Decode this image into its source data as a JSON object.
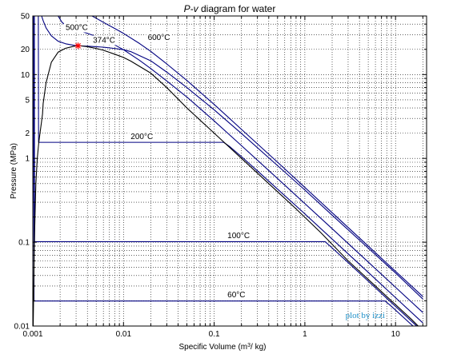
{
  "chart_data": {
    "type": "line",
    "title": {
      "italic": "P-v",
      "rest": " diagram for water"
    },
    "xlabel": {
      "before": "Specific Volume (m",
      "sup": "3",
      "after": "/ kg)"
    },
    "ylabel": "Pressure (MPa)",
    "x_scale": "log",
    "y_scale": "log",
    "xlim": [
      0.001,
      22
    ],
    "ylim": [
      0.01,
      50
    ],
    "grid": true,
    "x_ticks": [
      {
        "value": 0.001,
        "label": "0.001"
      },
      {
        "value": 0.01,
        "label": "0.01"
      },
      {
        "value": 0.1,
        "label": "0.1"
      },
      {
        "value": 1,
        "label": "1"
      },
      {
        "value": 10,
        "label": "10"
      }
    ],
    "y_ticks": [
      {
        "value": 50,
        "label": "50"
      },
      {
        "value": 20,
        "label": "20"
      },
      {
        "value": 10,
        "label": "10"
      },
      {
        "value": 5,
        "label": "5"
      },
      {
        "value": 2,
        "label": "2"
      },
      {
        "value": 1,
        "label": "1"
      },
      {
        "value": 0.1,
        "label": "0.1"
      },
      {
        "value": 0.01,
        "label": "0.01"
      }
    ],
    "saturation_dome": {
      "color": "#000000",
      "x": [
        0.00101,
        0.00104,
        0.00108,
        0.00112,
        0.00116,
        0.0012,
        0.00124,
        0.00128,
        0.0013,
        0.0014,
        0.0016,
        0.0019,
        0.0023,
        0.0028,
        0.003155,
        0.0035,
        0.004,
        0.005,
        0.006,
        0.008,
        0.01,
        0.012,
        0.02,
        0.03,
        0.05,
        0.1,
        0.2,
        0.4,
        0.8,
        1.5,
        3,
        6,
        10,
        15,
        20
      ],
      "y": [
        0.01,
        0.1,
        0.5,
        1,
        1.5,
        2,
        2.6,
        3.4,
        4.5,
        8,
        14,
        18.5,
        20.6,
        21.7,
        22.06,
        21.9,
        21.5,
        20.5,
        19.5,
        17.5,
        16.0,
        14.5,
        10.4,
        7.0,
        4.0,
        2.0,
        1.0,
        0.5,
        0.25,
        0.13,
        0.06,
        0.03,
        0.018,
        0.012,
        0.0088
      ]
    },
    "critical_point": {
      "x": 0.003155,
      "y": 22.06,
      "color": "#ff0000"
    },
    "isotherms": [
      {
        "label": "60°C",
        "color": "#000080",
        "x": [
          0.001017,
          0.00102,
          0.00103,
          7.67,
          9,
          11,
          14,
          17,
          20
        ],
        "y": [
          50,
          10,
          0.0199,
          0.0199,
          0.0172,
          0.0141,
          0.0111,
          0.0092,
          0.0079
        ]
      },
      {
        "label": "100°C",
        "color": "#000080",
        "x": [
          0.00104,
          0.001042,
          0.001044,
          1.673,
          2,
          3,
          5,
          8,
          12,
          16,
          20
        ],
        "y": [
          50,
          5,
          0.1014,
          0.1014,
          0.0855,
          0.0572,
          0.0343,
          0.0214,
          0.0143,
          0.0107,
          0.0086
        ]
      },
      {
        "label": "200°C",
        "color": "#000080",
        "x": [
          0.00115,
          0.001155,
          0.001157,
          0.1274,
          0.15,
          0.2,
          0.3,
          0.5,
          1,
          2,
          5,
          10,
          20
        ],
        "y": [
          50,
          5,
          1.554,
          1.554,
          1.37,
          1.05,
          0.71,
          0.43,
          0.218,
          0.109,
          0.0437,
          0.0218,
          0.0109
        ]
      },
      {
        "label": "374°C",
        "color": "#000080",
        "x": [
          0.00125,
          0.0013,
          0.0014,
          0.0016,
          0.0019,
          0.0023,
          0.0028,
          0.003155,
          0.0035,
          0.004,
          0.005,
          0.006,
          0.008,
          0.01,
          0.012,
          0.02,
          0.03,
          0.05,
          0.1,
          0.2,
          0.5,
          1,
          2,
          5,
          10,
          20
        ],
        "y": [
          50,
          44,
          36,
          29,
          25,
          23.3,
          22.4,
          22.06,
          21.95,
          21.8,
          21.5,
          21.2,
          20.5,
          19.8,
          18.8,
          14.6,
          10.7,
          7.0,
          3.8,
          1.98,
          0.82,
          0.42,
          0.21,
          0.085,
          0.043,
          0.021
        ]
      },
      {
        "label": "500°C",
        "color": "#000080",
        "x": [
          0.0019,
          0.0021,
          0.0025,
          0.003,
          0.0035,
          0.004,
          0.005,
          0.006,
          0.008,
          0.01,
          0.015,
          0.02,
          0.03,
          0.05,
          0.1,
          0.2,
          0.5,
          1,
          2,
          5,
          10,
          20
        ],
        "y": [
          50,
          42,
          36,
          34,
          32.5,
          31,
          28.5,
          26.2,
          22.6,
          19.8,
          14.8,
          11.8,
          8.4,
          5.4,
          2.8,
          1.42,
          0.575,
          0.289,
          0.145,
          0.058,
          0.029,
          0.0145
        ]
      },
      {
        "label": "600°C",
        "color": "#000080",
        "x": [
          0.0045,
          0.005,
          0.006,
          0.008,
          0.01,
          0.015,
          0.02,
          0.03,
          0.05,
          0.1,
          0.2,
          0.5,
          1,
          2,
          5,
          10,
          20
        ],
        "y": [
          50,
          47,
          42,
          35.5,
          31,
          23.5,
          18.9,
          13.4,
          8.5,
          4.4,
          2.22,
          0.9,
          0.45,
          0.225,
          0.09,
          0.045,
          0.0225
        ]
      }
    ],
    "isotherm_labels": [
      {
        "text": "500°C",
        "x": 0.0023,
        "y": 34
      },
      {
        "text": "600°C",
        "x": 0.0185,
        "y": 26
      },
      {
        "text": "374°C",
        "x": 0.0046,
        "y": 24
      },
      {
        "text": "200°C",
        "x": 0.012,
        "y": 1.7
      },
      {
        "text": "100°C",
        "x": 0.14,
        "y": 0.112
      },
      {
        "text": "60°C",
        "x": 0.14,
        "y": 0.022
      }
    ],
    "annotations": [
      {
        "text": "plot by izzi",
        "x": 2.8,
        "y": 0.0125,
        "color": "#1e90c8"
      }
    ]
  }
}
